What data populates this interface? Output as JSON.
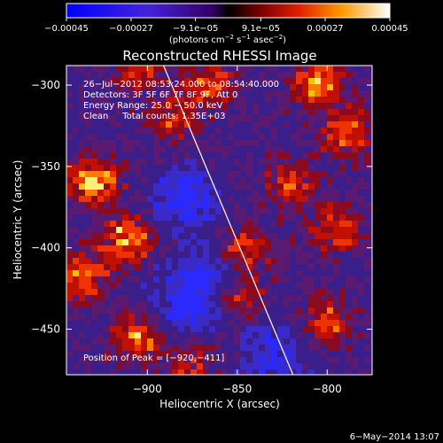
{
  "chart_data": {
    "type": "heatmap",
    "title": "Reconstructed RHESSI Image",
    "xlabel": "Heliocentric X (arcsec)",
    "ylabel": "Heliocentric Y (arcsec)",
    "xlim": [
      -945,
      -775
    ],
    "ylim": [
      -478,
      -288
    ],
    "x_ticks": [
      -900,
      -850,
      -800
    ],
    "x_tick_labels": [
      "−900",
      "−850",
      "−800"
    ],
    "y_ticks": [
      -300,
      -350,
      -400,
      -450
    ],
    "y_tick_labels": [
      "−300",
      "−350",
      "−400",
      "−450"
    ],
    "colorbar": {
      "min": -0.00045,
      "max": 0.00045,
      "ticks": [
        -0.00045,
        -0.00027,
        -9.1e-05,
        9.1e-05,
        0.00027,
        0.00045
      ],
      "tick_labels": [
        "−0.00045",
        "−0.00027",
        "−9.1e−05",
        "9.1e−05",
        "0.00027",
        "0.00045"
      ],
      "unit_prefix": "(photons cm",
      "unit_sup1": "−2",
      "unit_mid": " s",
      "unit_sup2": "−1",
      "unit_mid2": " asec",
      "unit_sup3": "−2",
      "unit_suffix": ")"
    },
    "annotations": {
      "time_range": "26−Jul−2012 08:53:24.000 to 08:54:40.000",
      "detectors": "Detectors: 3F 5F 6F 7F 8F 9F, Att 0",
      "energy_range": "Energy Range: 25.0 − 50.0 keV",
      "clean": "Clean     Total counts: 1.35E+03",
      "peak": "Position of Peak = [−920,−411]"
    },
    "peak_position": [
      -920,
      -411
    ],
    "limb_line": [
      [
        -891,
        -288
      ],
      [
        -819,
        -478
      ]
    ],
    "hot_regions": [
      {
        "x": -930,
        "y": -360,
        "level": 0.95
      },
      {
        "x": -912,
        "y": -395,
        "level": 0.9
      },
      {
        "x": -937,
        "y": -418,
        "level": 0.75
      },
      {
        "x": -905,
        "y": -455,
        "level": 0.7
      },
      {
        "x": -885,
        "y": -320,
        "level": 0.55
      },
      {
        "x": -865,
        "y": -300,
        "level": 0.65
      },
      {
        "x": -805,
        "y": -300,
        "level": 0.8
      },
      {
        "x": -790,
        "y": -330,
        "level": 0.7
      },
      {
        "x": -820,
        "y": -360,
        "level": 0.55
      },
      {
        "x": -795,
        "y": -390,
        "level": 0.6
      },
      {
        "x": -845,
        "y": -400,
        "level": 0.55
      },
      {
        "x": -850,
        "y": -430,
        "level": 0.5
      },
      {
        "x": -800,
        "y": -445,
        "level": 0.6
      },
      {
        "x": -875,
        "y": -470,
        "level": 0.5
      },
      {
        "x": -905,
        "y": -290,
        "level": 0.45
      }
    ],
    "cold_regions": [
      {
        "x": -880,
        "y": -370,
        "level": 0.6
      },
      {
        "x": -870,
        "y": -420,
        "level": 0.55
      },
      {
        "x": -830,
        "y": -465,
        "level": 0.45
      },
      {
        "x": -880,
        "y": -440,
        "level": 0.5
      }
    ]
  },
  "footer": {
    "timestamp": "6−May−2014 13:07"
  }
}
